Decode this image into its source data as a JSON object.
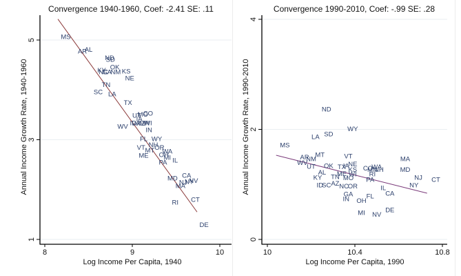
{
  "chart_data": [
    {
      "type": "scatter",
      "title": "Convergence 1940-1960, Coef: -2.41 SE: .11",
      "xlabel": "Log Income Per Capita, 1940",
      "ylabel": "Annual Income Growth Rate, 1940-1960",
      "xlim": [
        8,
        10
      ],
      "ylim": [
        1,
        5
      ],
      "xticks": [
        "8",
        "9",
        "10"
      ],
      "xtick_values": [
        8,
        9,
        10
      ],
      "yticks": [
        "1",
        "3",
        "5"
      ],
      "ytick_values": [
        1,
        3,
        5
      ],
      "grid": true,
      "marker": "state-label",
      "label_color": "#2b3f6b",
      "fit_line": {
        "color": "#8b3a3a",
        "x": [
          8.15,
          9.74
        ],
        "y": [
          5.42,
          1.55
        ]
      },
      "points": [
        {
          "label": "MS",
          "x": 8.24,
          "y": 5.07
        },
        {
          "label": "AR",
          "x": 8.43,
          "y": 4.78
        },
        {
          "label": "AL",
          "x": 8.5,
          "y": 4.81
        },
        {
          "label": "ND",
          "x": 8.74,
          "y": 4.65
        },
        {
          "label": "SD",
          "x": 8.75,
          "y": 4.61
        },
        {
          "label": "OK",
          "x": 8.8,
          "y": 4.46
        },
        {
          "label": "KY",
          "x": 8.65,
          "y": 4.4
        },
        {
          "label": "NC",
          "x": 8.67,
          "y": 4.36
        },
        {
          "label": "GA",
          "x": 8.71,
          "y": 4.36
        },
        {
          "label": "NM",
          "x": 8.81,
          "y": 4.36
        },
        {
          "label": "KS",
          "x": 8.93,
          "y": 4.38
        },
        {
          "label": "NE",
          "x": 8.97,
          "y": 4.24
        },
        {
          "label": "TN",
          "x": 8.7,
          "y": 4.11
        },
        {
          "label": "SC",
          "x": 8.61,
          "y": 3.96
        },
        {
          "label": "LA",
          "x": 8.77,
          "y": 3.92
        },
        {
          "label": "TX",
          "x": 8.95,
          "y": 3.75
        },
        {
          "label": "UT",
          "x": 9.05,
          "y": 3.49
        },
        {
          "label": "MO",
          "x": 9.12,
          "y": 3.51
        },
        {
          "label": "CO",
          "x": 9.18,
          "y": 3.53
        },
        {
          "label": "IA",
          "x": 9.08,
          "y": 3.42
        },
        {
          "label": "ID",
          "x": 9.01,
          "y": 3.34
        },
        {
          "label": "VA",
          "x": 9.04,
          "y": 3.33
        },
        {
          "label": "AZ",
          "x": 9.1,
          "y": 3.33
        },
        {
          "label": "MN",
          "x": 9.14,
          "y": 3.34
        },
        {
          "label": "WI",
          "x": 9.18,
          "y": 3.34
        },
        {
          "label": "WV",
          "x": 8.89,
          "y": 3.27
        },
        {
          "label": "IN",
          "x": 9.19,
          "y": 3.2
        },
        {
          "label": "FL",
          "x": 9.13,
          "y": 3.02
        },
        {
          "label": "WY",
          "x": 9.28,
          "y": 3.02
        },
        {
          "label": "NH",
          "x": 9.24,
          "y": 2.9
        },
        {
          "label": "VT",
          "x": 9.1,
          "y": 2.85
        },
        {
          "label": "OR",
          "x": 9.31,
          "y": 2.85
        },
        {
          "label": "MT",
          "x": 9.2,
          "y": 2.79
        },
        {
          "label": "WA",
          "x": 9.4,
          "y": 2.77
        },
        {
          "label": "ME",
          "x": 9.13,
          "y": 2.69
        },
        {
          "label": "OH",
          "x": 9.36,
          "y": 2.7
        },
        {
          "label": "MI",
          "x": 9.4,
          "y": 2.65
        },
        {
          "label": "PA",
          "x": 9.35,
          "y": 2.55
        },
        {
          "label": "IL",
          "x": 9.49,
          "y": 2.59
        },
        {
          "label": "MD",
          "x": 9.46,
          "y": 2.23
        },
        {
          "label": "CA",
          "x": 9.62,
          "y": 2.29
        },
        {
          "label": "NJ",
          "x": 9.58,
          "y": 2.15
        },
        {
          "label": "NY",
          "x": 9.65,
          "y": 2.16
        },
        {
          "label": "NV",
          "x": 9.7,
          "y": 2.18
        },
        {
          "label": "MA",
          "x": 9.55,
          "y": 2.08
        },
        {
          "label": "CT",
          "x": 9.72,
          "y": 1.8
        },
        {
          "label": "RI",
          "x": 9.49,
          "y": 1.75
        },
        {
          "label": "DE",
          "x": 9.82,
          "y": 1.3
        }
      ]
    },
    {
      "type": "scatter",
      "title": "Convergence 1990-2010, Coef: -.99 SE: .28",
      "xlabel": "Log Income Per Capita, 1990",
      "ylabel": "Annual Income Growth Rate, 1990-2010",
      "xlim": [
        10,
        10.8
      ],
      "ylim": [
        0,
        4
      ],
      "xticks": [
        "10",
        "10.4",
        "10.8"
      ],
      "xtick_values": [
        10,
        10.4,
        10.8
      ],
      "yticks": [
        "0",
        "2",
        "4"
      ],
      "ytick_values": [
        0,
        2,
        4
      ],
      "grid": true,
      "marker": "state-label",
      "label_color": "#2b3f6b",
      "fit_line": {
        "color": "#7a3a7a",
        "x": [
          10.04,
          10.73
        ],
        "y": [
          1.53,
          0.84
        ]
      },
      "points": [
        {
          "label": "ND",
          "x": 10.27,
          "y": 2.37
        },
        {
          "label": "LA",
          "x": 10.22,
          "y": 1.87
        },
        {
          "label": "SD",
          "x": 10.28,
          "y": 1.92
        },
        {
          "label": "WY",
          "x": 10.39,
          "y": 2.01
        },
        {
          "label": "MS",
          "x": 10.08,
          "y": 1.72
        },
        {
          "label": "AR",
          "x": 10.17,
          "y": 1.5
        },
        {
          "label": "NM",
          "x": 10.2,
          "y": 1.47
        },
        {
          "label": "MT",
          "x": 10.24,
          "y": 1.54
        },
        {
          "label": "WV",
          "x": 10.16,
          "y": 1.4
        },
        {
          "label": "UT",
          "x": 10.2,
          "y": 1.33
        },
        {
          "label": "OK",
          "x": 10.28,
          "y": 1.34
        },
        {
          "label": "AL",
          "x": 10.25,
          "y": 1.22
        },
        {
          "label": "KY",
          "x": 10.23,
          "y": 1.13
        },
        {
          "label": "TN",
          "x": 10.31,
          "y": 1.14
        },
        {
          "label": "ID",
          "x": 10.24,
          "y": 0.99
        },
        {
          "label": "SC",
          "x": 10.27,
          "y": 0.99
        },
        {
          "label": "AZ",
          "x": 10.31,
          "y": 1.02
        },
        {
          "label": "NC",
          "x": 10.35,
          "y": 0.97
        },
        {
          "label": "OR",
          "x": 10.39,
          "y": 0.97
        },
        {
          "label": "VT",
          "x": 10.37,
          "y": 1.52
        },
        {
          "label": "IA",
          "x": 10.36,
          "y": 1.34
        },
        {
          "label": "NE",
          "x": 10.39,
          "y": 1.37
        },
        {
          "label": "TX",
          "x": 10.34,
          "y": 1.32
        },
        {
          "label": "KS",
          "x": 10.39,
          "y": 1.27
        },
        {
          "label": "ME",
          "x": 10.34,
          "y": 1.2
        },
        {
          "label": "WI",
          "x": 10.39,
          "y": 1.19
        },
        {
          "label": "MO",
          "x": 10.37,
          "y": 1.12
        },
        {
          "label": "GA",
          "x": 10.37,
          "y": 0.83
        },
        {
          "label": "IN",
          "x": 10.36,
          "y": 0.74
        },
        {
          "label": "OH",
          "x": 10.43,
          "y": 0.71
        },
        {
          "label": "MI",
          "x": 10.43,
          "y": 0.49
        },
        {
          "label": "CO",
          "x": 10.46,
          "y": 1.3
        },
        {
          "label": "WA",
          "x": 10.5,
          "y": 1.32
        },
        {
          "label": "MN",
          "x": 10.48,
          "y": 1.27
        },
        {
          "label": "NH",
          "x": 10.51,
          "y": 1.27
        },
        {
          "label": "RI",
          "x": 10.48,
          "y": 1.19
        },
        {
          "label": "PA",
          "x": 10.47,
          "y": 1.09
        },
        {
          "label": "MA",
          "x": 10.63,
          "y": 1.47
        },
        {
          "label": "MD",
          "x": 10.63,
          "y": 1.27
        },
        {
          "label": "NJ",
          "x": 10.69,
          "y": 1.13
        },
        {
          "label": "CT",
          "x": 10.77,
          "y": 1.09
        },
        {
          "label": "NY",
          "x": 10.67,
          "y": 0.99
        },
        {
          "label": "IL",
          "x": 10.53,
          "y": 0.94
        },
        {
          "label": "CA",
          "x": 10.56,
          "y": 0.84
        },
        {
          "label": "FL",
          "x": 10.47,
          "y": 0.79
        },
        {
          "label": "DE",
          "x": 10.56,
          "y": 0.54
        },
        {
          "label": "NV",
          "x": 10.5,
          "y": 0.46
        }
      ]
    }
  ]
}
